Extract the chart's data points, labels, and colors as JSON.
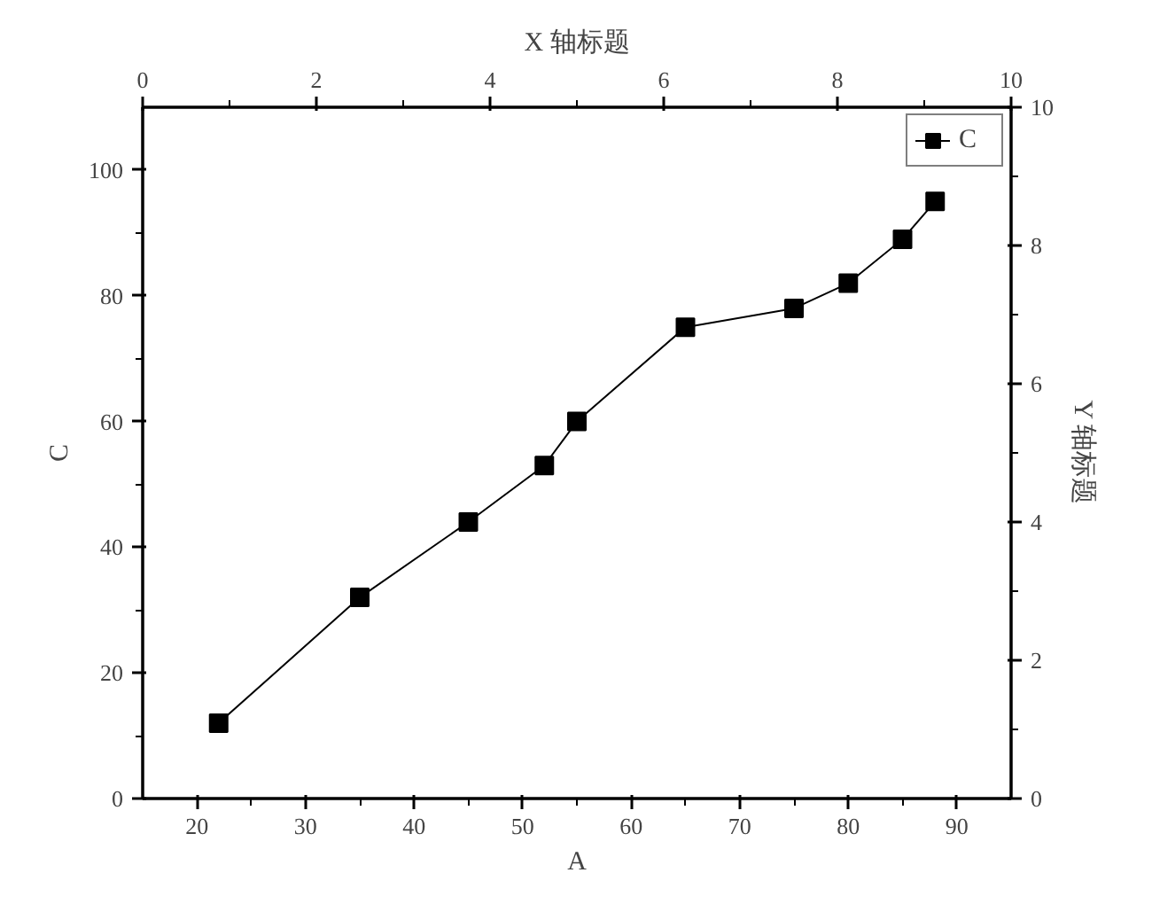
{
  "chart_data": {
    "type": "line",
    "xlabel": "A",
    "ylabel": "C",
    "x2label": "X 轴标题",
    "y2label": "Y 轴标题",
    "x": [
      22,
      35,
      45,
      52,
      55,
      65,
      75,
      80,
      85,
      88
    ],
    "series": [
      {
        "name": "C",
        "color": "#000000",
        "values": [
          12,
          32,
          44,
          53,
          60,
          75,
          78,
          82,
          89,
          95
        ]
      }
    ],
    "xlim": [
      15,
      95
    ],
    "xticks": [
      20,
      30,
      40,
      50,
      60,
      70,
      80,
      90
    ],
    "ylim": [
      0,
      110
    ],
    "yticks": [
      0,
      20,
      40,
      60,
      80,
      100
    ],
    "x2lim": [
      0,
      10
    ],
    "x2ticks": [
      0,
      2,
      4,
      6,
      8,
      10
    ],
    "y2lim": [
      0,
      10
    ],
    "y2ticks": [
      0,
      2,
      4,
      6,
      8,
      10
    ],
    "marker": "square",
    "line_style": "solid",
    "legend": "top right",
    "grid": false
  }
}
